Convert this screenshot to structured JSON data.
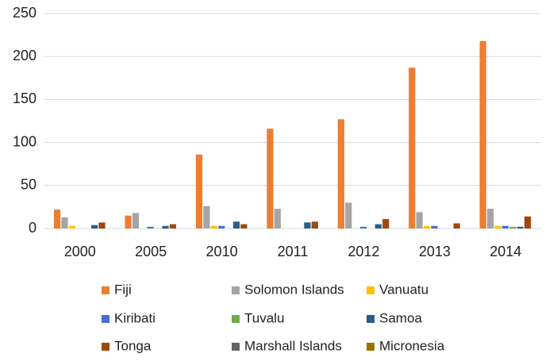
{
  "chart_data": {
    "type": "bar",
    "categories": [
      "2000",
      "2005",
      "2010",
      "2011",
      "2012",
      "2013",
      "2014"
    ],
    "series": [
      {
        "name": "Fiji",
        "color": "#ed7d31",
        "values": [
          22,
          15,
          86,
          116,
          127,
          187,
          218
        ]
      },
      {
        "name": "Solomon Islands",
        "color": "#a5a5a5",
        "values": [
          13,
          18,
          26,
          23,
          30,
          19,
          23
        ]
      },
      {
        "name": "Vanuatu",
        "color": "#ffc000",
        "values": [
          3,
          0,
          3,
          0,
          0,
          3,
          3
        ]
      },
      {
        "name": "Kiribati",
        "color": "#4472c4",
        "values": [
          0,
          2,
          3,
          0,
          2,
          3,
          3
        ]
      },
      {
        "name": "Tuvalu",
        "color": "#70ad47",
        "values": [
          0,
          0,
          0,
          0,
          0,
          0,
          2
        ]
      },
      {
        "name": "Samoa",
        "color": "#255e91",
        "values": [
          4,
          3,
          8,
          7,
          5,
          0,
          2
        ]
      },
      {
        "name": "Tonga",
        "color": "#9e480e",
        "values": [
          7,
          5,
          5,
          8,
          11,
          6,
          14
        ]
      },
      {
        "name": "Marshall Islands",
        "color": "#636363",
        "values": [
          0,
          0,
          0,
          0,
          0,
          0,
          0
        ]
      },
      {
        "name": "Micronesia",
        "color": "#997300",
        "values": [
          0,
          0,
          0,
          0,
          0,
          0,
          0
        ]
      }
    ],
    "ylim": [
      0,
      250
    ],
    "yticks": [
      0,
      50,
      100,
      150,
      200,
      250
    ],
    "grid": true,
    "legend": "bottom"
  }
}
